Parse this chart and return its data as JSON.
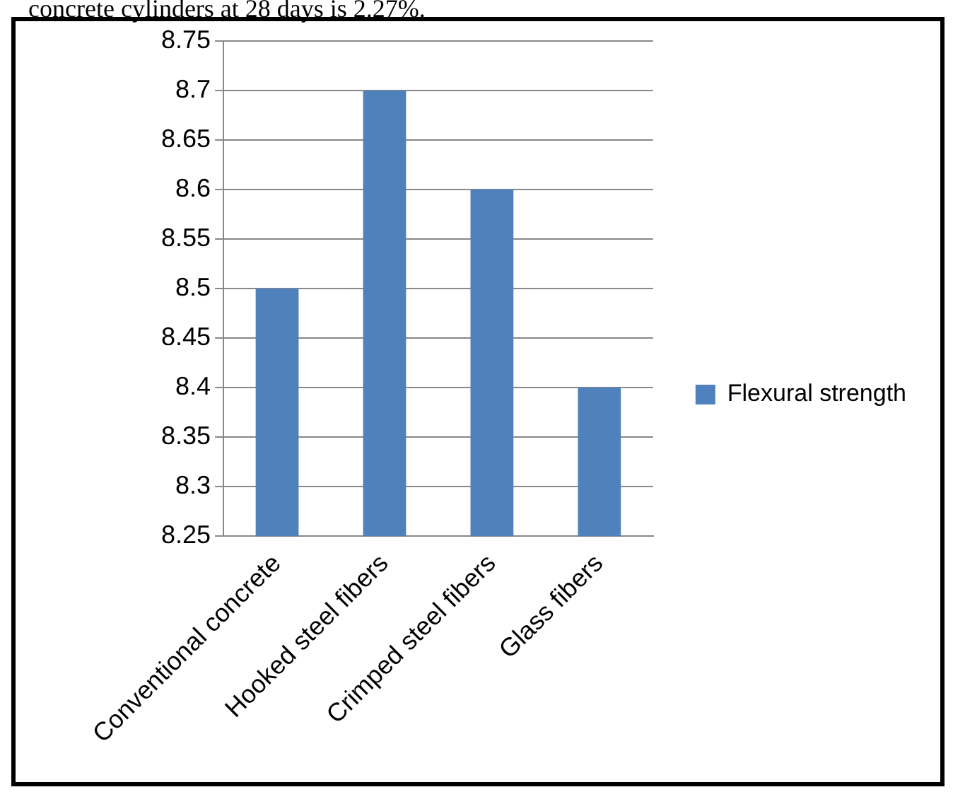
{
  "chart_data": {
    "type": "bar",
    "annotations": [
      "concrete cylinders at 28 days is 2.27%."
    ],
    "categories": [
      "Conventional concrete",
      "Hooked steel fibers",
      "Crimped steel fibers",
      "Glass fibers"
    ],
    "series": [
      {
        "name": "Flexural strength",
        "color": "#4f81bd",
        "values": [
          8.5,
          8.7,
          8.6,
          8.4
        ]
      }
    ],
    "ylim": [
      8.25,
      8.75
    ],
    "yticks": [
      8.25,
      8.3,
      8.35,
      8.4,
      8.45,
      8.5,
      8.55,
      8.6,
      8.65,
      8.7,
      8.75
    ],
    "grid": "y",
    "legend": "right"
  }
}
